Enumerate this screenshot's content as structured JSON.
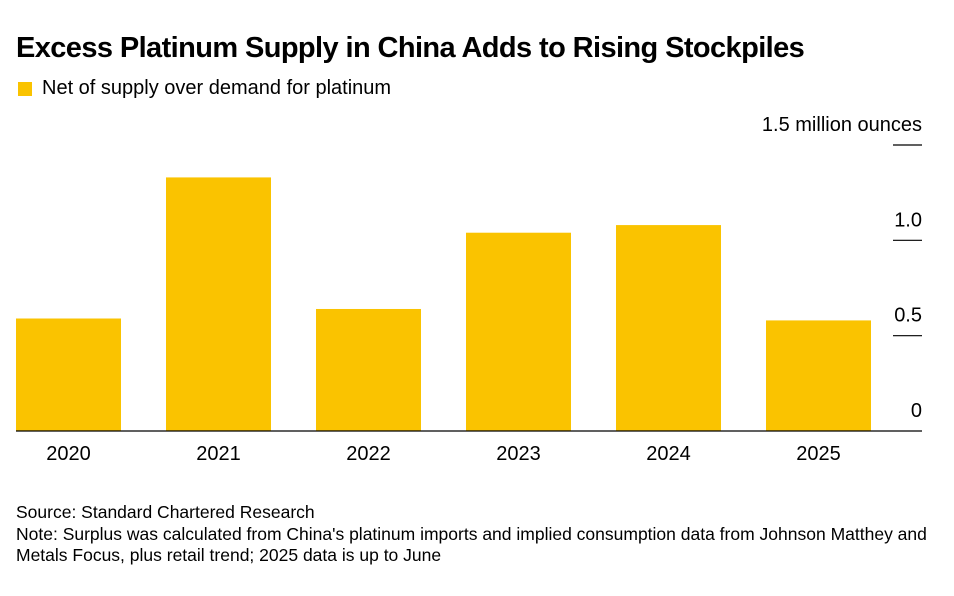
{
  "title": "Excess Platinum Supply in China Adds to Rising Stockpiles",
  "legend": {
    "label": "Net of supply over demand for platinum",
    "color": "#fac300"
  },
  "footer": {
    "source": "Source: Standard Chartered Research",
    "note": "Note: Surplus was calculated from China's platinum imports and implied consumption data from Johnson Matthey and Metals Focus, plus retail trend; 2025 data is up to June"
  },
  "chart_data": {
    "type": "bar",
    "title": "Excess Platinum Supply in China Adds to Rising Stockpiles",
    "categories": [
      "2020",
      "2021",
      "2022",
      "2023",
      "2024",
      "2025"
    ],
    "series": [
      {
        "name": "Net of supply over demand for platinum",
        "values": [
          0.59,
          1.33,
          0.64,
          1.04,
          1.08,
          0.58
        ]
      }
    ],
    "xlabel": "",
    "ylabel": "",
    "ylim": [
      0,
      1.5
    ],
    "yticks": [
      {
        "value": 1.5,
        "label": "1.5 million ounces"
      },
      {
        "value": 1.0,
        "label": "1.0"
      },
      {
        "value": 0.5,
        "label": "0.5"
      },
      {
        "value": 0,
        "label": "0"
      }
    ],
    "y_axis_position": "right",
    "grid": false,
    "bar_color": "#fac300"
  }
}
